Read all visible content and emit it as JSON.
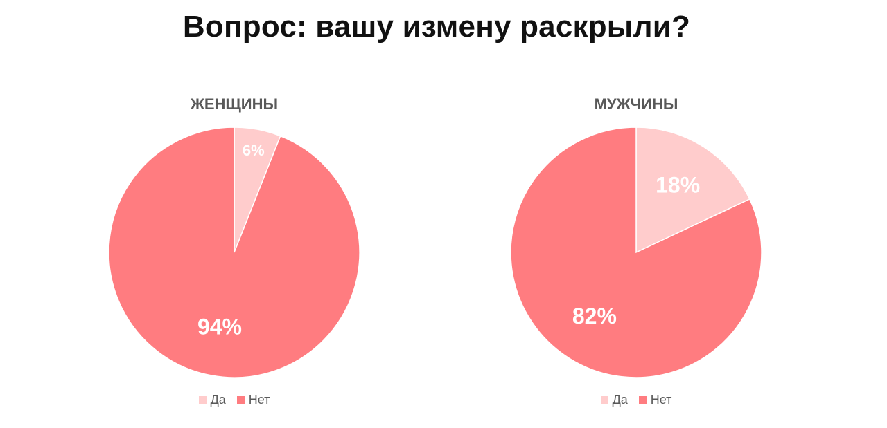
{
  "title": "Вопрос: вашу измену раскрыли?",
  "colors": {
    "yes": "#ffcccc",
    "no": "#ff7c80"
  },
  "chart_data": [
    {
      "type": "pie",
      "title": "ЖЕНЩИНЫ",
      "categories": [
        "Да",
        "Нет"
      ],
      "values": [
        6,
        94
      ],
      "data_labels": [
        "6%",
        "94%"
      ],
      "legend": "bottom"
    },
    {
      "type": "pie",
      "title": "МУЖЧИНЫ",
      "categories": [
        "Да",
        "Нет"
      ],
      "values": [
        18,
        82
      ],
      "data_labels": [
        "18%",
        "82%"
      ],
      "legend": "bottom"
    }
  ]
}
